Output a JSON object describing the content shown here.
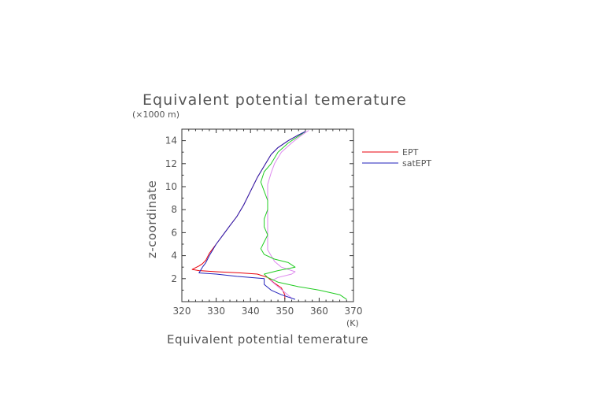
{
  "chart_data": {
    "type": "line",
    "title": "Equivalent potential temerature",
    "xlabel": "Equivalent potential temerature",
    "ylabel": "z-coordinate",
    "x_unit": "(K)",
    "y_unit": "(×1000 m)",
    "xlim": [
      320,
      370
    ],
    "ylim": [
      0,
      15
    ],
    "xticks": [
      320,
      330,
      340,
      350,
      360,
      370
    ],
    "yticks": [
      2,
      4,
      6,
      8,
      10,
      12,
      14
    ],
    "grid": false,
    "legend_position": "right",
    "series": [
      {
        "name": "EPT",
        "color": "#e8000b",
        "points": [
          [
            350,
            0.2
          ],
          [
            350,
            0.6
          ],
          [
            349,
            1.2
          ],
          [
            347,
            1.6
          ],
          [
            345,
            2.1
          ],
          [
            342,
            2.4
          ],
          [
            337,
            2.5
          ],
          [
            330,
            2.6
          ],
          [
            325,
            2.7
          ],
          [
            323,
            2.8
          ],
          [
            325,
            3.1
          ],
          [
            326,
            3.3
          ],
          [
            327,
            3.6
          ],
          [
            328,
            4.2
          ],
          [
            330,
            5
          ],
          [
            332,
            5.8
          ],
          [
            334,
            6.6
          ],
          [
            336,
            7.4
          ],
          [
            338,
            8.4
          ],
          [
            340,
            9.6
          ],
          [
            342,
            10.8
          ],
          [
            344,
            11.8
          ],
          [
            346,
            12.8
          ],
          [
            348,
            13.4
          ],
          [
            351,
            14
          ],
          [
            354,
            14.5
          ],
          [
            356,
            14.8
          ]
        ]
      },
      {
        "name": "satEPT",
        "color": "#dd88ee",
        "points": [
          [
            352,
            0.3
          ],
          [
            350,
            0.8
          ],
          [
            348,
            1.3
          ],
          [
            346,
            1.8
          ],
          [
            348,
            2.1
          ],
          [
            352,
            2.4
          ],
          [
            353,
            2.6
          ],
          [
            349,
            3
          ],
          [
            347,
            3.5
          ],
          [
            345,
            4.5
          ],
          [
            345,
            6
          ],
          [
            345,
            7.5
          ],
          [
            345,
            9
          ],
          [
            345,
            10.2
          ],
          [
            346,
            11.2
          ],
          [
            347,
            12
          ],
          [
            349,
            13
          ],
          [
            352,
            13.8
          ],
          [
            355,
            14.5
          ],
          [
            357,
            14.9
          ]
        ]
      },
      {
        "name": "",
        "color": "#22cc22",
        "points": [
          [
            368,
            0.2
          ],
          [
            366,
            0.6
          ],
          [
            360,
            1
          ],
          [
            354,
            1.3
          ],
          [
            348,
            1.7
          ],
          [
            345,
            2.1
          ],
          [
            344,
            2.4
          ],
          [
            348,
            2.7
          ],
          [
            353,
            3
          ],
          [
            351,
            3.4
          ],
          [
            347,
            3.7
          ],
          [
            344,
            4.1
          ],
          [
            343,
            4.6
          ],
          [
            344,
            5.2
          ],
          [
            345,
            5.8
          ],
          [
            344,
            6.5
          ],
          [
            344,
            7.2
          ],
          [
            345,
            8
          ],
          [
            345,
            8.8
          ],
          [
            344,
            9.6
          ],
          [
            343,
            10.4
          ],
          [
            344,
            11.3
          ],
          [
            346,
            12
          ],
          [
            348,
            13
          ],
          [
            351,
            13.8
          ],
          [
            354,
            14.4
          ],
          [
            356,
            14.8
          ]
        ]
      },
      {
        "name": "",
        "color": "#2222bb",
        "points": [
          [
            353,
            0.2
          ],
          [
            349,
            0.6
          ],
          [
            346,
            1
          ],
          [
            344,
            1.5
          ],
          [
            344,
            2
          ],
          [
            336,
            2.2
          ],
          [
            330,
            2.4
          ],
          [
            325,
            2.5
          ],
          [
            326,
            3
          ],
          [
            327,
            3.4
          ],
          [
            328,
            4
          ],
          [
            330,
            5
          ],
          [
            332,
            5.8
          ],
          [
            334,
            6.6
          ],
          [
            336,
            7.4
          ],
          [
            338,
            8.4
          ],
          [
            340,
            9.6
          ],
          [
            342,
            10.8
          ],
          [
            344,
            11.8
          ],
          [
            346,
            12.8
          ],
          [
            348,
            13.4
          ],
          [
            351,
            14
          ],
          [
            354,
            14.5
          ],
          [
            356,
            14.8
          ]
        ]
      }
    ],
    "legend": [
      "EPT",
      "satEPT"
    ]
  }
}
